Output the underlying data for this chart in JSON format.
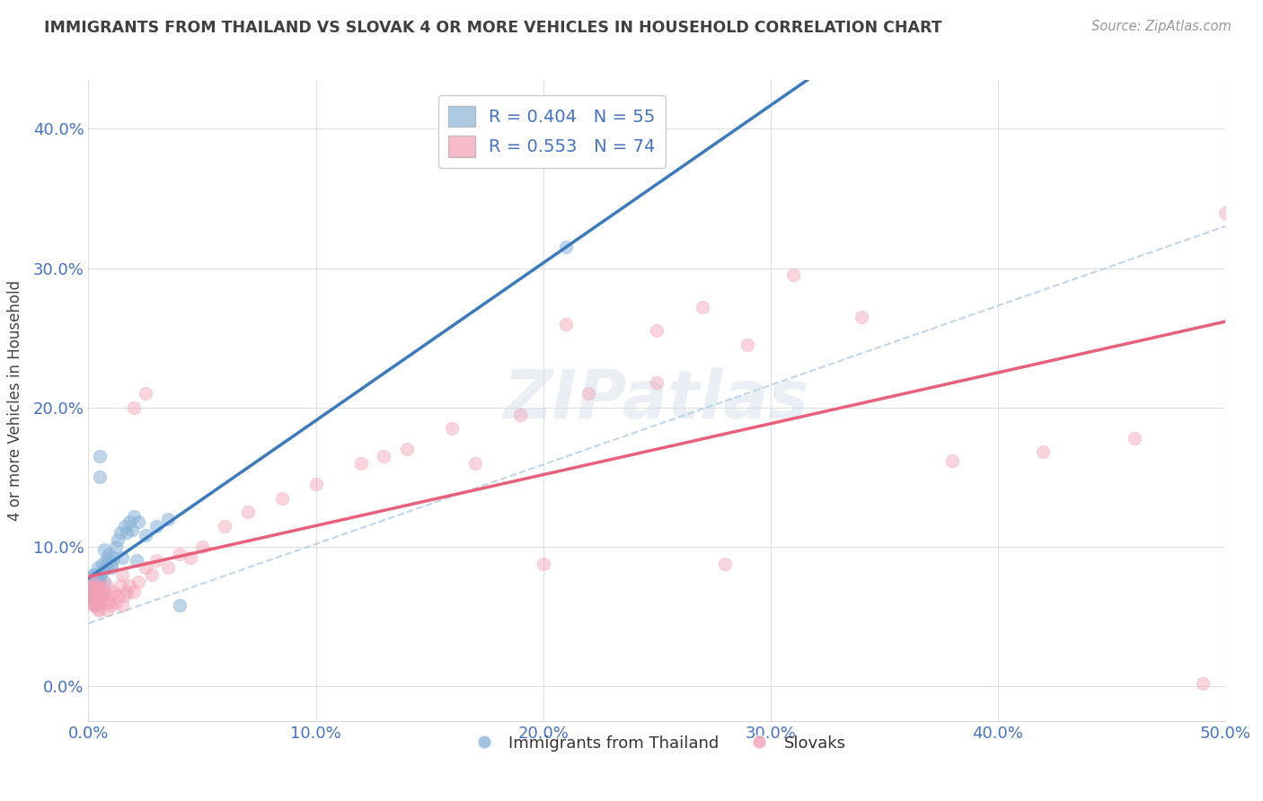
{
  "title": "IMMIGRANTS FROM THAILAND VS SLOVAK 4 OR MORE VEHICLES IN HOUSEHOLD CORRELATION CHART",
  "source": "Source: ZipAtlas.com",
  "ylabel": "4 or more Vehicles in Household",
  "x_min": 0.0,
  "x_max": 0.5,
  "y_min": -0.025,
  "y_max": 0.435,
  "x_ticks": [
    0.0,
    0.1,
    0.2,
    0.3,
    0.4,
    0.5
  ],
  "x_tick_labels": [
    "0.0%",
    "10.0%",
    "20.0%",
    "30.0%",
    "40.0%",
    "50.0%"
  ],
  "y_ticks": [
    0.0,
    0.1,
    0.2,
    0.3,
    0.4
  ],
  "y_tick_labels": [
    "0.0%",
    "10.0%",
    "20.0%",
    "30.0%",
    "40.0%"
  ],
  "blue_color": "#8ab4d8",
  "pink_color": "#f4a0b5",
  "blue_line_color": "#3a7abf",
  "pink_line_color": "#e8607a",
  "blue_dash_color": "#b0cce4",
  "axis_label_color": "#4472c4",
  "title_color": "#404040",
  "grid_color": "#d8d8d8",
  "watermark": "ZIPatlas",
  "legend_r1": "R = 0.404   N = 55",
  "legend_r2": "R = 0.553   N = 74",
  "legend_label1": "Immigrants from Thailand",
  "legend_label2": "Slovaks",
  "thailand_x": [
    0.001,
    0.001,
    0.001,
    0.001,
    0.001,
    0.002,
    0.002,
    0.002,
    0.002,
    0.002,
    0.002,
    0.002,
    0.003,
    0.003,
    0.003,
    0.003,
    0.003,
    0.004,
    0.004,
    0.004,
    0.004,
    0.004,
    0.005,
    0.005,
    0.005,
    0.005,
    0.006,
    0.006,
    0.006,
    0.007,
    0.007,
    0.007,
    0.008,
    0.008,
    0.009,
    0.009,
    0.01,
    0.01,
    0.011,
    0.012,
    0.013,
    0.014,
    0.015,
    0.016,
    0.017,
    0.018,
    0.019,
    0.02,
    0.021,
    0.022,
    0.025,
    0.03,
    0.035,
    0.04,
    0.21
  ],
  "thailand_y": [
    0.068,
    0.072,
    0.075,
    0.078,
    0.065,
    0.07,
    0.073,
    0.068,
    0.062,
    0.08,
    0.075,
    0.065,
    0.07,
    0.075,
    0.08,
    0.065,
    0.058,
    0.072,
    0.078,
    0.068,
    0.06,
    0.085,
    0.15,
    0.165,
    0.075,
    0.08,
    0.082,
    0.088,
    0.065,
    0.085,
    0.075,
    0.098,
    0.092,
    0.085,
    0.09,
    0.095,
    0.085,
    0.088,
    0.092,
    0.1,
    0.105,
    0.11,
    0.092,
    0.115,
    0.11,
    0.118,
    0.112,
    0.122,
    0.09,
    0.118,
    0.108,
    0.115,
    0.12,
    0.058,
    0.315
  ],
  "slovak_x": [
    0.001,
    0.001,
    0.001,
    0.001,
    0.002,
    0.002,
    0.002,
    0.002,
    0.003,
    0.003,
    0.003,
    0.003,
    0.004,
    0.004,
    0.004,
    0.004,
    0.005,
    0.005,
    0.005,
    0.005,
    0.006,
    0.006,
    0.007,
    0.007,
    0.008,
    0.008,
    0.009,
    0.01,
    0.01,
    0.011,
    0.012,
    0.013,
    0.014,
    0.015,
    0.015,
    0.016,
    0.017,
    0.018,
    0.02,
    0.022,
    0.025,
    0.028,
    0.03,
    0.035,
    0.04,
    0.045,
    0.05,
    0.06,
    0.07,
    0.085,
    0.1,
    0.12,
    0.14,
    0.16,
    0.19,
    0.22,
    0.25,
    0.29,
    0.34,
    0.38,
    0.42,
    0.46,
    0.5,
    0.49,
    0.25,
    0.27,
    0.31,
    0.17,
    0.21,
    0.13,
    0.02,
    0.2,
    0.025,
    0.28
  ],
  "slovak_y": [
    0.065,
    0.06,
    0.07,
    0.072,
    0.058,
    0.068,
    0.062,
    0.075,
    0.065,
    0.07,
    0.058,
    0.068,
    0.062,
    0.072,
    0.055,
    0.068,
    0.06,
    0.065,
    0.07,
    0.055,
    0.065,
    0.07,
    0.06,
    0.068,
    0.055,
    0.072,
    0.06,
    0.065,
    0.058,
    0.068,
    0.06,
    0.065,
    0.072,
    0.058,
    0.08,
    0.065,
    0.068,
    0.072,
    0.068,
    0.075,
    0.085,
    0.08,
    0.09,
    0.085,
    0.095,
    0.092,
    0.1,
    0.115,
    0.125,
    0.135,
    0.145,
    0.16,
    0.17,
    0.185,
    0.195,
    0.21,
    0.218,
    0.245,
    0.265,
    0.162,
    0.168,
    0.178,
    0.34,
    0.002,
    0.255,
    0.272,
    0.295,
    0.16,
    0.26,
    0.165,
    0.2,
    0.088,
    0.21,
    0.088
  ]
}
